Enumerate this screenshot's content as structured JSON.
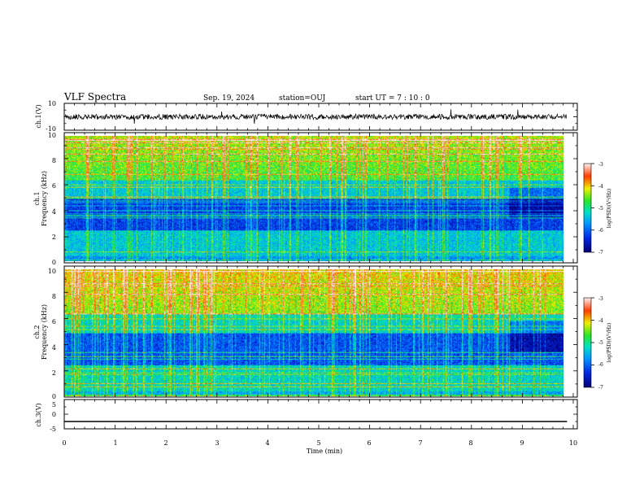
{
  "header": {
    "title": "VLF Spectra",
    "date": "Sep. 19, 2024",
    "station": "station=OUJ",
    "start": "start  UT  =   7 : 10 : 0"
  },
  "chart_data": [
    {
      "type": "line",
      "name": "ch.1 waveform",
      "ylabel": "ch.1(V)",
      "ylim": [
        -10,
        10
      ],
      "yticks": [
        "10",
        "-10"
      ],
      "xlim": [
        0,
        9.8
      ],
      "trace_level": 0,
      "trace_amplitude": 2
    },
    {
      "type": "heatmap",
      "name": "ch.1 spectrogram",
      "ylabel_line1": "ch.1",
      "ylabel_line2": "Frequency  (kHz)",
      "ylim": [
        0,
        10
      ],
      "yticks": [
        "10",
        "8",
        "6",
        "4",
        "2",
        "0"
      ],
      "xlim": [
        0,
        9.8
      ],
      "colorbar": {
        "label": "log(PSD)(V²/Hz)",
        "range": [
          -7,
          -3
        ],
        "ticks": [
          "-3",
          "-4",
          "-5",
          "-6",
          "-7"
        ]
      }
    },
    {
      "type": "heatmap",
      "name": "ch.2 spectrogram",
      "ylabel_line1": "ch.2",
      "ylabel_line2": "Frequency  (kHz)",
      "ylim": [
        0,
        10
      ],
      "yticks": [
        "10",
        "8",
        "6",
        "4",
        "2",
        "0"
      ],
      "xlim": [
        0,
        9.8
      ],
      "colorbar": {
        "label": "log(PSD)(V²/Hz)",
        "range": [
          -7,
          -3
        ],
        "ticks": [
          "-3",
          "-4",
          "-5",
          "-6",
          "-7"
        ]
      }
    },
    {
      "type": "line",
      "name": "ch.3 waveform",
      "ylabel": "ch.3(V)",
      "ylim": [
        -5,
        5
      ],
      "yticks": [
        "5",
        "0",
        "-5"
      ],
      "xlim": [
        0,
        9.8
      ],
      "trace_level": -2.5
    }
  ],
  "xaxis": {
    "label": "Time  (min)",
    "range": [
      0,
      10
    ],
    "ticks": [
      "0",
      "1",
      "2",
      "3",
      "4",
      "5",
      "6",
      "7",
      "8",
      "9",
      "10"
    ]
  },
  "colors": {
    "background": "#ffffff",
    "axis": "#000000",
    "trace": "#000000"
  }
}
